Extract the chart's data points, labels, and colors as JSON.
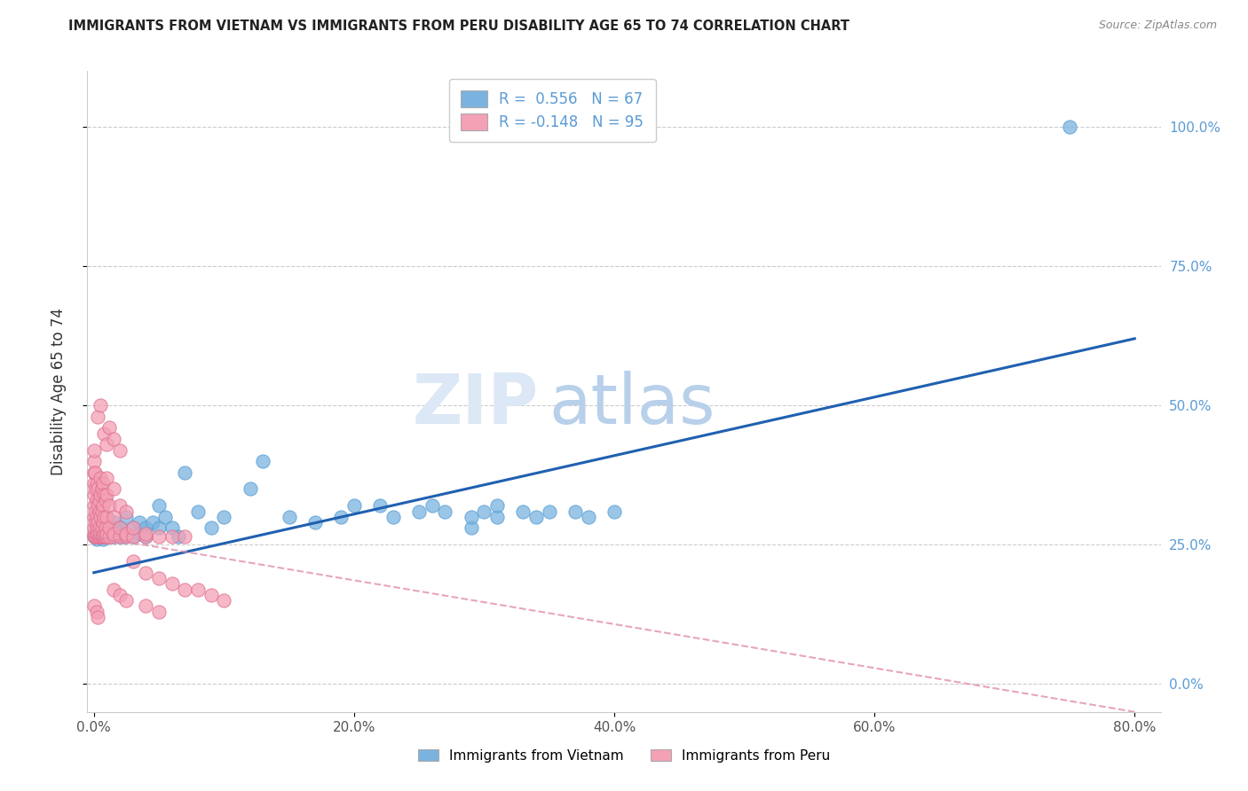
{
  "title": "IMMIGRANTS FROM VIETNAM VS IMMIGRANTS FROM PERU DISABILITY AGE 65 TO 74 CORRELATION CHART",
  "source": "Source: ZipAtlas.com",
  "ylabel": "Disability Age 65 to 74",
  "xlabel_ticks": [
    "0.0%",
    "20.0%",
    "40.0%",
    "60.0%",
    "80.0%"
  ],
  "xlabel_vals": [
    0.0,
    0.2,
    0.4,
    0.6,
    0.8
  ],
  "ylabel_ticks_right": [
    "100.0%",
    "75.0%",
    "50.0%",
    "25.0%",
    "0.0%"
  ],
  "ylabel_vals": [
    0.0,
    0.25,
    0.5,
    0.75,
    1.0
  ],
  "xlim": [
    -0.005,
    0.82
  ],
  "ylim": [
    -0.05,
    1.1
  ],
  "vietnam_color": "#7ab3e0",
  "peru_color": "#f4a0b5",
  "vietnam_edge": "#5a9fd4",
  "peru_edge": "#e07090",
  "trend_vietnam_color": "#2060b0",
  "trend_peru_color": "#e090a8",
  "vietnam_r": 0.556,
  "vietnam_n": 67,
  "peru_r": -0.148,
  "peru_n": 95,
  "watermark_zip": "ZIP",
  "watermark_atlas": "atlas",
  "legend_vietnam": "Immigrants from Vietnam",
  "legend_peru": "Immigrants from Peru",
  "viet_line_x0": 0.0,
  "viet_line_y0": 0.2,
  "viet_line_x1": 0.8,
  "viet_line_y1": 0.62,
  "peru_line_x0": 0.0,
  "peru_line_y0": 0.265,
  "peru_line_x1": 0.8,
  "peru_line_y1": -0.05,
  "vietnam_scatter": [
    [
      0.0,
      0.265
    ],
    [
      0.001,
      0.27
    ],
    [
      0.002,
      0.26
    ],
    [
      0.003,
      0.28
    ],
    [
      0.004,
      0.27
    ],
    [
      0.005,
      0.265
    ],
    [
      0.005,
      0.29
    ],
    [
      0.006,
      0.27
    ],
    [
      0.007,
      0.26
    ],
    [
      0.008,
      0.28
    ],
    [
      0.009,
      0.27
    ],
    [
      0.01,
      0.265
    ],
    [
      0.01,
      0.3
    ],
    [
      0.011,
      0.27
    ],
    [
      0.012,
      0.28
    ],
    [
      0.013,
      0.265
    ],
    [
      0.014,
      0.27
    ],
    [
      0.015,
      0.265
    ],
    [
      0.016,
      0.29
    ],
    [
      0.017,
      0.27
    ],
    [
      0.018,
      0.28
    ],
    [
      0.019,
      0.265
    ],
    [
      0.02,
      0.28
    ],
    [
      0.021,
      0.27
    ],
    [
      0.022,
      0.265
    ],
    [
      0.025,
      0.265
    ],
    [
      0.025,
      0.3
    ],
    [
      0.03,
      0.28
    ],
    [
      0.03,
      0.265
    ],
    [
      0.035,
      0.29
    ],
    [
      0.035,
      0.27
    ],
    [
      0.04,
      0.28
    ],
    [
      0.04,
      0.265
    ],
    [
      0.045,
      0.29
    ],
    [
      0.05,
      0.28
    ],
    [
      0.05,
      0.32
    ],
    [
      0.055,
      0.3
    ],
    [
      0.06,
      0.28
    ],
    [
      0.065,
      0.265
    ],
    [
      0.07,
      0.38
    ],
    [
      0.08,
      0.31
    ],
    [
      0.09,
      0.28
    ],
    [
      0.1,
      0.3
    ],
    [
      0.12,
      0.35
    ],
    [
      0.13,
      0.4
    ],
    [
      0.15,
      0.3
    ],
    [
      0.17,
      0.29
    ],
    [
      0.19,
      0.3
    ],
    [
      0.2,
      0.32
    ],
    [
      0.22,
      0.32
    ],
    [
      0.23,
      0.3
    ],
    [
      0.25,
      0.31
    ],
    [
      0.26,
      0.32
    ],
    [
      0.27,
      0.31
    ],
    [
      0.29,
      0.28
    ],
    [
      0.29,
      0.3
    ],
    [
      0.3,
      0.31
    ],
    [
      0.31,
      0.3
    ],
    [
      0.31,
      0.32
    ],
    [
      0.33,
      0.31
    ],
    [
      0.34,
      0.3
    ],
    [
      0.35,
      0.31
    ],
    [
      0.37,
      0.31
    ],
    [
      0.38,
      0.3
    ],
    [
      0.4,
      0.31
    ],
    [
      0.75,
      1.0
    ]
  ],
  "peru_scatter": [
    [
      0.0,
      0.265
    ],
    [
      0.0,
      0.27
    ],
    [
      0.0,
      0.28
    ],
    [
      0.0,
      0.3
    ],
    [
      0.0,
      0.32
    ],
    [
      0.0,
      0.34
    ],
    [
      0.0,
      0.36
    ],
    [
      0.0,
      0.38
    ],
    [
      0.0,
      0.4
    ],
    [
      0.0,
      0.42
    ],
    [
      0.001,
      0.265
    ],
    [
      0.001,
      0.29
    ],
    [
      0.001,
      0.31
    ],
    [
      0.001,
      0.35
    ],
    [
      0.001,
      0.38
    ],
    [
      0.002,
      0.265
    ],
    [
      0.002,
      0.28
    ],
    [
      0.002,
      0.3
    ],
    [
      0.002,
      0.33
    ],
    [
      0.002,
      0.36
    ],
    [
      0.003,
      0.265
    ],
    [
      0.003,
      0.27
    ],
    [
      0.003,
      0.29
    ],
    [
      0.003,
      0.32
    ],
    [
      0.003,
      0.35
    ],
    [
      0.004,
      0.265
    ],
    [
      0.004,
      0.28
    ],
    [
      0.004,
      0.31
    ],
    [
      0.004,
      0.33
    ],
    [
      0.005,
      0.265
    ],
    [
      0.005,
      0.27
    ],
    [
      0.005,
      0.3
    ],
    [
      0.005,
      0.34
    ],
    [
      0.005,
      0.37
    ],
    [
      0.006,
      0.265
    ],
    [
      0.006,
      0.28
    ],
    [
      0.006,
      0.31
    ],
    [
      0.006,
      0.35
    ],
    [
      0.007,
      0.265
    ],
    [
      0.007,
      0.29
    ],
    [
      0.007,
      0.32
    ],
    [
      0.007,
      0.36
    ],
    [
      0.008,
      0.265
    ],
    [
      0.008,
      0.27
    ],
    [
      0.008,
      0.3
    ],
    [
      0.008,
      0.34
    ],
    [
      0.009,
      0.265
    ],
    [
      0.009,
      0.28
    ],
    [
      0.009,
      0.33
    ],
    [
      0.01,
      0.265
    ],
    [
      0.01,
      0.27
    ],
    [
      0.01,
      0.3
    ],
    [
      0.01,
      0.34
    ],
    [
      0.01,
      0.37
    ],
    [
      0.012,
      0.265
    ],
    [
      0.012,
      0.28
    ],
    [
      0.012,
      0.32
    ],
    [
      0.015,
      0.265
    ],
    [
      0.015,
      0.27
    ],
    [
      0.015,
      0.3
    ],
    [
      0.015,
      0.35
    ],
    [
      0.02,
      0.265
    ],
    [
      0.02,
      0.28
    ],
    [
      0.02,
      0.32
    ],
    [
      0.025,
      0.265
    ],
    [
      0.025,
      0.27
    ],
    [
      0.025,
      0.31
    ],
    [
      0.03,
      0.265
    ],
    [
      0.03,
      0.28
    ],
    [
      0.04,
      0.265
    ],
    [
      0.04,
      0.27
    ],
    [
      0.05,
      0.265
    ],
    [
      0.06,
      0.265
    ],
    [
      0.07,
      0.265
    ],
    [
      0.008,
      0.45
    ],
    [
      0.01,
      0.43
    ],
    [
      0.012,
      0.46
    ],
    [
      0.015,
      0.44
    ],
    [
      0.02,
      0.42
    ],
    [
      0.003,
      0.48
    ],
    [
      0.005,
      0.5
    ],
    [
      0.03,
      0.22
    ],
    [
      0.04,
      0.2
    ],
    [
      0.05,
      0.19
    ],
    [
      0.06,
      0.18
    ],
    [
      0.07,
      0.17
    ],
    [
      0.08,
      0.17
    ],
    [
      0.09,
      0.16
    ],
    [
      0.1,
      0.15
    ],
    [
      0.015,
      0.17
    ],
    [
      0.02,
      0.16
    ],
    [
      0.025,
      0.15
    ],
    [
      0.04,
      0.14
    ],
    [
      0.05,
      0.13
    ],
    [
      0.0,
      0.14
    ],
    [
      0.002,
      0.13
    ],
    [
      0.003,
      0.12
    ]
  ]
}
